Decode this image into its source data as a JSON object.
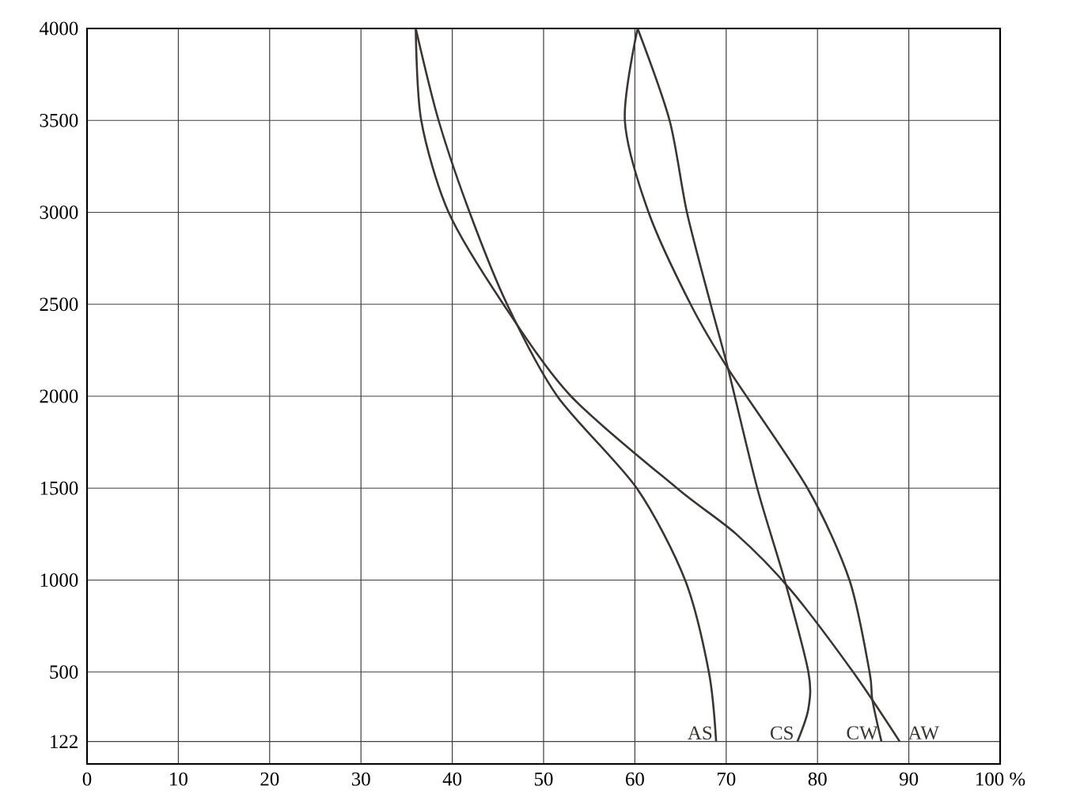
{
  "chart_data": {
    "type": "line",
    "xlim": [
      0,
      100
    ],
    "ylim": [
      0,
      4000
    ],
    "xticks": [
      0,
      10,
      20,
      30,
      40,
      50,
      60,
      70,
      80,
      90,
      {
        "value": 100,
        "label": "100 %"
      }
    ],
    "yticks": [
      122,
      500,
      1000,
      1500,
      2000,
      2500,
      3000,
      3500,
      4000
    ],
    "grid": true,
    "marker": "none",
    "line_style": "solid",
    "series": [
      {
        "name": "AS",
        "color": "#3a3533",
        "x": [
          36.0,
          38.5,
          41.9,
          46.0,
          51.5,
          60.2,
          65.5,
          68.1,
          68.9
        ],
        "values": [
          4000,
          3500,
          3000,
          2500,
          2000,
          1500,
          1000,
          500,
          122
        ]
      },
      {
        "name": "CS",
        "color": "#3a3533",
        "x": [
          60.3,
          63.8,
          65.7,
          68.3,
          70.2,
          73.4,
          76.4,
          79.0,
          79.0,
          77.8
        ],
        "values": [
          4000,
          3500,
          3000,
          2500,
          2150,
          1500,
          1000,
          500,
          300,
          122
        ]
      },
      {
        "name": "CW",
        "color": "#3a3533",
        "x": [
          60.3,
          58.9,
          61.5,
          66.1,
          70.2,
          78.9,
          83.5,
          85.7,
          86.0,
          87.0
        ],
        "values": [
          4000,
          3500,
          3000,
          2500,
          2150,
          1500,
          1000,
          500,
          350,
          122
        ]
      },
      {
        "name": "AW",
        "color": "#3a3533",
        "x": [
          36.0,
          36.6,
          39.6,
          45.6,
          53.0,
          64.6,
          71.1,
          77.0,
          83.9,
          89.0
        ],
        "values": [
          4000,
          3500,
          3000,
          2500,
          2000,
          1500,
          1250,
          950,
          500,
          122
        ]
      }
    ]
  }
}
